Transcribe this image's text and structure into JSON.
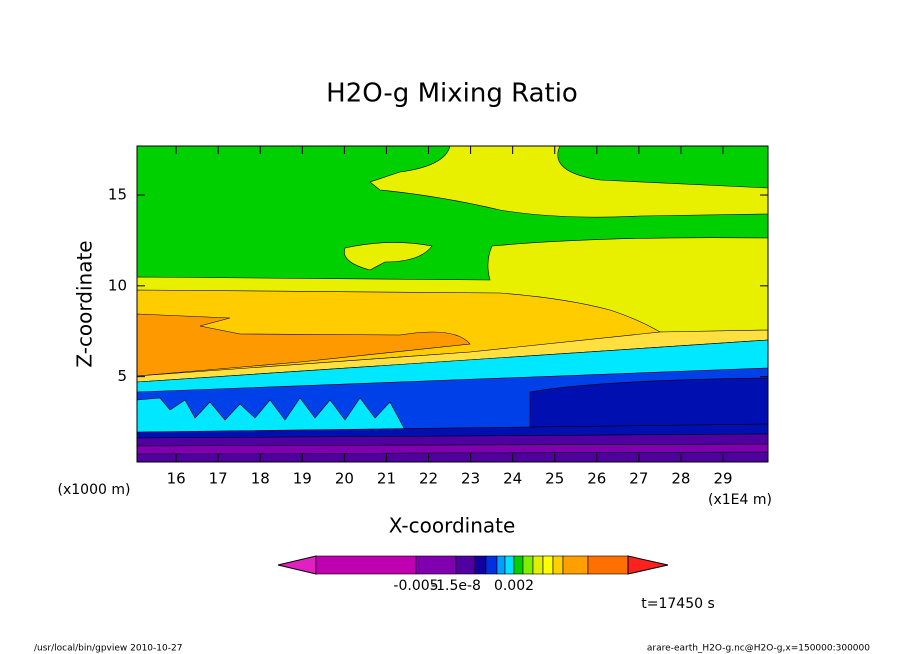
{
  "chart_data": {
    "type": "contour",
    "title": "H2O-g Mixing Ratio",
    "xlabel": "X-coordinate",
    "ylabel": "Z-coordinate",
    "xunit": "(x1E4 m)",
    "yunit": "(x1000 m)",
    "xlim": [
      15.07,
      30.07
    ],
    "xticks": [
      16,
      17,
      18,
      19,
      20,
      21,
      22,
      23,
      24,
      25,
      26,
      27,
      28,
      29
    ],
    "ylim": [
      0.3,
      17.7
    ],
    "yticks": [
      5,
      10,
      15
    ],
    "colorbar": {
      "colors": [
        "#e020c0",
        "#c000b0",
        "#8000b0",
        "#5000a0",
        "#1000a0",
        "#0030e0",
        "#00a0ff",
        "#00e0ff",
        "#00d000",
        "#80f000",
        "#e0f000",
        "#ffff00",
        "#ffd000",
        "#ffa000",
        "#ff7000",
        "#ff2020"
      ],
      "ticks": [
        -0.005,
        -1.5e-08,
        0.002
      ]
    },
    "time_label": "t=17450 s",
    "footer_left": "/usr/local/bin/gpview  2010-10-27",
    "footer_right": "arare-earth_H2O-g.nc@H2O-g,x=150000:300000"
  }
}
